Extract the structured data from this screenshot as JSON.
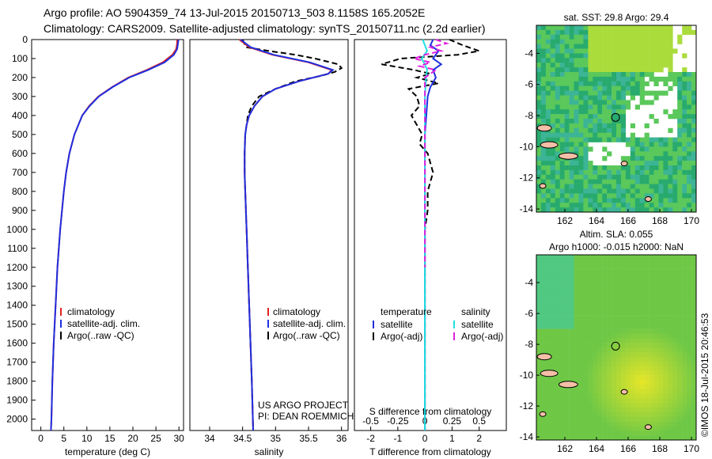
{
  "title_line1": "Argo profile: AO 5904359_74 13-Jul-2015 20150713_503 8.1158S 165.2052E",
  "title_line2": "Climatology: CARS2009. Satellite-adjusted climatology: synTS_20150711.nc (2.2d earlier)",
  "credit": "US ARGO PROJECT",
  "pi": "PI: DEAN ROEMMICH",
  "footer": "©IMOS 18-Jul-2015 20:46:53",
  "colors": {
    "climatology": "#e02020",
    "satellite": "#1f2fe0",
    "argo": "#000000",
    "sal_satellite": "#20e0e0",
    "sal_argo": "#e020e0"
  },
  "chart_data": [
    {
      "type": "line",
      "xlabel": "temperature (deg C)",
      "ylabel": "",
      "xlim": [
        -2,
        31
      ],
      "ylim": [
        2060,
        0
      ],
      "xticks": [
        0,
        5,
        10,
        15,
        20,
        25,
        30
      ],
      "yticks": [
        0,
        100,
        200,
        300,
        400,
        500,
        600,
        700,
        800,
        900,
        1000,
        1100,
        1200,
        1300,
        1400,
        1500,
        1600,
        1700,
        1800,
        1900,
        2000
      ],
      "legend": [
        "climatology",
        "satellite-adj. clim.",
        "Argo(..raw -QC)"
      ],
      "legend_position": "bottom-left",
      "series": [
        {
          "name": "climatology",
          "depth": [
            0,
            20,
            50,
            80,
            120,
            160,
            200,
            250,
            300,
            350,
            400,
            500,
            600,
            700,
            800,
            900,
            1000,
            1200,
            1400,
            1600,
            1800,
            2000,
            2060
          ],
          "values": [
            29.6,
            29.6,
            29.4,
            28.6,
            26.5,
            23.0,
            19.0,
            15.5,
            12.5,
            10.5,
            9.0,
            7.3,
            6.2,
            5.5,
            5.0,
            4.6,
            4.2,
            3.6,
            3.2,
            2.8,
            2.5,
            2.3,
            2.2
          ]
        },
        {
          "name": "satellite-adj. clim.",
          "depth": [
            0,
            20,
            50,
            80,
            120,
            160,
            200,
            250,
            300,
            350,
            400,
            500,
            600,
            700,
            800,
            900,
            1000,
            1200,
            1400,
            1600,
            1800,
            2000,
            2060
          ],
          "values": [
            29.9,
            29.8,
            29.6,
            28.9,
            26.9,
            23.3,
            19.2,
            15.6,
            12.6,
            10.6,
            9.0,
            7.3,
            6.2,
            5.5,
            5.0,
            4.6,
            4.2,
            3.6,
            3.2,
            2.8,
            2.5,
            2.3,
            2.2
          ]
        }
      ]
    },
    {
      "type": "line",
      "xlabel": "salinity",
      "xlim": [
        33.7,
        36.1
      ],
      "ylim": [
        2060,
        0
      ],
      "xticks": [
        34,
        34.5,
        35,
        35.5,
        36
      ],
      "legend": [
        "climatology",
        "satellite-adj. clim.",
        "Argo(..raw -QC)"
      ],
      "legend_position": "bottom-right",
      "series": [
        {
          "name": "climatology",
          "depth": [
            0,
            40,
            80,
            120,
            160,
            180,
            220,
            260,
            300,
            350,
            400,
            450,
            500,
            600,
            700,
            800,
            1000,
            1200,
            1500,
            1800,
            2060
          ],
          "values": [
            34.45,
            34.6,
            34.95,
            35.5,
            35.85,
            35.8,
            35.35,
            35.0,
            34.8,
            34.68,
            34.6,
            34.56,
            34.54,
            34.53,
            34.53,
            34.54,
            34.56,
            34.58,
            34.61,
            34.64,
            34.66
          ]
        },
        {
          "name": "satellite-adj. clim.",
          "depth": [
            0,
            40,
            80,
            120,
            160,
            180,
            220,
            260,
            300,
            350,
            400,
            450,
            500,
            600,
            700,
            800,
            1000,
            1200,
            1500,
            1800,
            2060
          ],
          "values": [
            34.47,
            34.62,
            34.97,
            35.52,
            35.87,
            35.8,
            35.35,
            35.0,
            34.8,
            34.68,
            34.6,
            34.56,
            34.54,
            34.53,
            34.53,
            34.54,
            34.56,
            34.58,
            34.61,
            34.64,
            34.66
          ]
        },
        {
          "name": "Argo(..raw -QC)",
          "depth": [
            0,
            40,
            60,
            80,
            100,
            130,
            150,
            170,
            190,
            220,
            260,
            300,
            350,
            400,
            450,
            500,
            600,
            700,
            800,
            900,
            1000,
            1200,
            1500,
            1800,
            2060
          ],
          "values": [
            34.5,
            34.55,
            34.9,
            35.3,
            35.6,
            35.95,
            36.0,
            35.9,
            35.7,
            35.3,
            35.0,
            34.75,
            34.64,
            34.58,
            34.56,
            34.54,
            34.53,
            34.53,
            34.54,
            34.55,
            34.56,
            34.58,
            34.61,
            34.64,
            34.66
          ]
        }
      ]
    },
    {
      "type": "line",
      "xlabel_top": "S difference from climatology",
      "xlabel": "T difference from climatology",
      "xlim": [
        -2.6,
        3.0
      ],
      "ylim": [
        2060,
        0
      ],
      "xticks": [
        -2,
        -1,
        0,
        1,
        2
      ],
      "xticks_top": [
        "-0.5",
        "-0.25",
        "0",
        "0.25",
        "0.5"
      ],
      "legend_temperature": [
        "temperature",
        "satellite",
        "Argo(-adj)"
      ],
      "legend_salinity": [
        "salinity",
        "satellite",
        "Argo(-adj)"
      ],
      "series": [
        {
          "name": "T satellite",
          "depth": [
            0,
            30,
            60,
            100,
            130,
            160,
            200,
            250,
            300,
            400,
            500,
            700,
            1000,
            1500,
            2060
          ],
          "values": [
            0.3,
            0.2,
            0.5,
            0.3,
            0.6,
            0.3,
            0.4,
            0.2,
            0.1,
            0.05,
            0,
            0,
            0,
            0,
            0
          ]
        },
        {
          "name": "T Argo(-adj)",
          "depth": [
            0,
            30,
            60,
            80,
            100,
            130,
            160,
            180,
            200,
            230,
            260,
            300,
            350,
            400,
            450,
            500,
            550,
            600,
            700,
            800,
            900,
            1000,
            1200,
            1500,
            1800,
            2060
          ],
          "values": [
            0.9,
            1.4,
            2.0,
            1.2,
            -0.9,
            -1.6,
            -0.4,
            0.2,
            -0.3,
            0.5,
            -0.6,
            -0.3,
            -0.2,
            -0.5,
            -0.3,
            -0.1,
            -0.2,
            0.1,
            0.3,
            0.1,
            0.1,
            0,
            0,
            0,
            0,
            0
          ]
        },
        {
          "name": "S satellite",
          "depth": [
            0,
            30,
            60,
            100,
            130,
            160,
            200,
            300,
            400,
            700,
            1000,
            1500,
            2060
          ],
          "values": [
            -0.02,
            0.0,
            0.02,
            -0.03,
            0.0,
            0.02,
            0.01,
            0,
            0,
            0,
            0,
            0,
            0
          ]
        },
        {
          "name": "S Argo(-adj)",
          "depth": [
            0,
            20,
            40,
            60,
            80,
            100,
            120,
            140,
            160,
            200,
            1200
          ],
          "values": [
            0.1,
            0.2,
            0.05,
            0.15,
            0.0,
            -0.1,
            0.05,
            -0.05,
            0.1,
            0,
            0
          ]
        }
      ]
    },
    {
      "type": "heatmap",
      "title": "sat. SST: 29.8 Argo: 29.4",
      "xticks": [
        162,
        164,
        166,
        168,
        170
      ],
      "yticks": [
        -4,
        -6,
        -8,
        -10,
        -12,
        -14
      ],
      "xlim": [
        160.2,
        170.3
      ],
      "ylim": [
        -14.2,
        -2.2
      ],
      "marker": {
        "lon": 165.2052,
        "lat": -8.1158
      }
    },
    {
      "type": "heatmap",
      "title_line1": "Altim. SLA: 0.055",
      "title_line2": "Argo h1000: -0.015 h2000: NaN",
      "xticks": [
        162,
        164,
        166,
        168,
        170
      ],
      "yticks": [
        -4,
        -6,
        -8,
        -10,
        -12,
        -14
      ],
      "xlim": [
        160.2,
        170.3
      ],
      "ylim": [
        -14.2,
        -2.2
      ],
      "marker": {
        "lon": 165.2052,
        "lat": -8.1158
      }
    }
  ]
}
